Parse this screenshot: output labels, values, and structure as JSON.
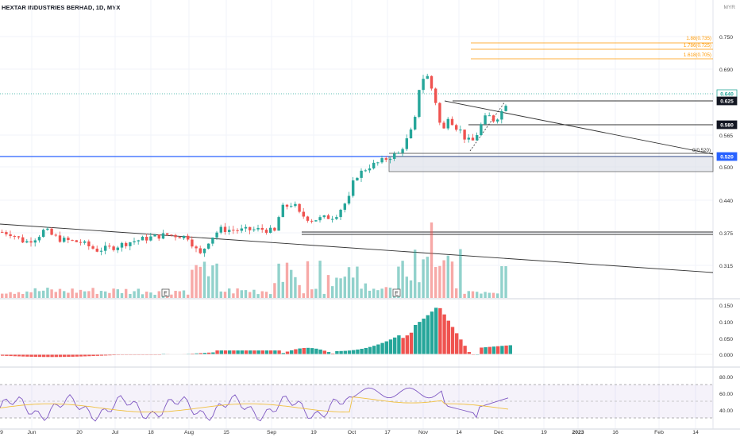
{
  "header": {
    "title": "HEXTAR INDUSTRIES BERHAD, 1D, MYX",
    "currency": "MYR"
  },
  "main_pane": {
    "y_ticks": [
      "0.750",
      "0.690",
      "0.565",
      "0.500",
      "0.440",
      "0.375",
      "0.315"
    ],
    "fib_labels": [
      "1.88(0.735)",
      "1.786(0.725)",
      "1.618(0.705)"
    ],
    "fib_zero_label": "0(0.520)",
    "price_tags": [
      {
        "text": "0.640",
        "bg": "#ffffff",
        "fg": "#26a69a",
        "border": "#26a69a"
      },
      {
        "text": "0.625",
        "bg": "#131722",
        "fg": "#ffffff",
        "border": "#131722"
      },
      {
        "text": "0.580",
        "bg": "#131722",
        "fg": "#ffffff",
        "border": "#131722"
      },
      {
        "text": "0.520",
        "bg": "#2962ff",
        "fg": "#ffffff",
        "border": "#2962ff"
      }
    ],
    "earnings_marks": [
      "E",
      "E"
    ]
  },
  "macd_pane": {
    "y_ticks": [
      "0.150",
      "0.100",
      "0.050",
      "0.000"
    ]
  },
  "rsi_pane": {
    "y_ticks": [
      "80.00",
      "60.00",
      "40.00"
    ]
  },
  "time_axis": [
    "9",
    "Jun",
    "20",
    "Jul",
    "18",
    "Aug",
    "15",
    "Sep",
    "19",
    "Oct",
    "17",
    "Nov",
    "14",
    "Dec",
    "19",
    "2023",
    "16",
    "Feb",
    "14"
  ],
  "colors": {
    "up": "#26a69a",
    "down": "#ef5350",
    "fib": "#ff9800",
    "rsi": "#7e57c2",
    "rsi_ma": "#ffd54f",
    "blue_line": "#2962ff"
  }
}
